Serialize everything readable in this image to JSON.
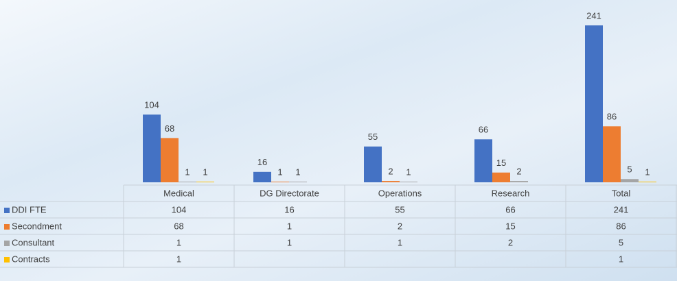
{
  "chart_data": {
    "type": "bar",
    "categories": [
      "Medical",
      "DG Directorate",
      "Operations",
      "Research",
      "Total"
    ],
    "series": [
      {
        "name": "DDI FTE",
        "color": "#4472c4",
        "values": [
          104,
          16,
          55,
          66,
          241
        ]
      },
      {
        "name": "Secondment",
        "color": "#ed7d31",
        "values": [
          68,
          1,
          2,
          15,
          86
        ]
      },
      {
        "name": "Consultant",
        "color": "#a5a5a5",
        "values": [
          1,
          1,
          1,
          2,
          5
        ]
      },
      {
        "name": "Contracts",
        "color": "#ffc000",
        "values": [
          1,
          null,
          null,
          null,
          1
        ]
      }
    ]
  }
}
